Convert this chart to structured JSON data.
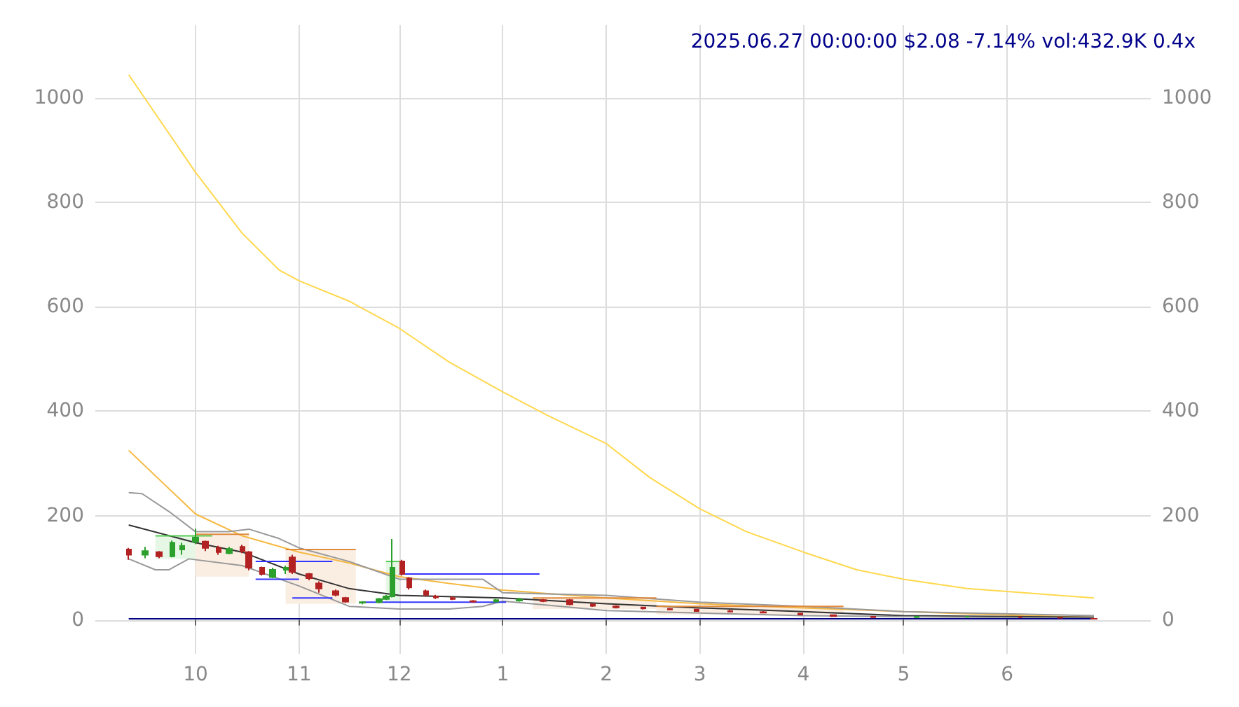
{
  "chart_data": {
    "type": "candlestick",
    "title": "2025.06.27 00:00:00 $2.08 -7.14% vol:432.9K 0.4x",
    "xlim": [
      "2024-09-01",
      "2025-07-14"
    ],
    "xticks": [
      {
        "value": "2024-10-01",
        "label": "10"
      },
      {
        "value": "2024-11-01",
        "label": "11"
      },
      {
        "value": "2024-12-01",
        "label": "12"
      },
      {
        "value": "2025-01-01",
        "label": "1"
      },
      {
        "value": "2025-02-01",
        "label": "2"
      },
      {
        "value": "2025-03-01",
        "label": "3"
      },
      {
        "value": "2025-04-01",
        "label": "4"
      },
      {
        "value": "2025-05-01",
        "label": "5"
      },
      {
        "value": "2025-06-01",
        "label": "6"
      }
    ],
    "ylim": [
      -65,
      1140
    ],
    "yticks": [
      0,
      200,
      400,
      600,
      800,
      1000
    ],
    "y2lim": [
      -65,
      1140
    ],
    "y2ticks": [
      0,
      200,
      400,
      600,
      800,
      1000
    ],
    "grid": true,
    "marker": "none",
    "line_style": "solid",
    "series": [
      {
        "type": "line",
        "color": "#ffd84d",
        "x": [
          "2024-09-11",
          "2024-10-01",
          "2024-10-15",
          "2024-10-26",
          "2024-11-01",
          "2024-11-16",
          "2024-12-01",
          "2024-12-16",
          "2025-01-01",
          "2025-01-15",
          "2025-02-01",
          "2025-02-14",
          "2025-03-01",
          "2025-03-15",
          "2025-04-01",
          "2025-04-17",
          "2025-05-01",
          "2025-05-20",
          "2025-06-06",
          "2025-06-27"
        ],
        "values": [
          1045,
          858,
          741,
          671,
          650,
          611,
          559,
          494,
          437,
          390,
          338,
          273,
          213,
          169,
          130,
          96,
          78,
          60,
          52,
          42
        ]
      },
      {
        "type": "line",
        "color": "#f5b942",
        "x": [
          "2024-09-11",
          "2024-10-01",
          "2024-10-15",
          "2024-11-01",
          "2024-11-16",
          "2024-12-01",
          "2024-12-16",
          "2025-01-01",
          "2025-02-01",
          "2025-03-01",
          "2025-04-01",
          "2025-05-01",
          "2025-06-06",
          "2025-06-27"
        ],
        "values": [
          325,
          203,
          161,
          130,
          109,
          83,
          70,
          57,
          42,
          31,
          23,
          16,
          8,
          5
        ]
      },
      {
        "type": "line",
        "color": "#333333",
        "x": [
          "2024-09-11",
          "2024-10-01",
          "2024-10-15",
          "2024-11-01",
          "2024-11-16",
          "2024-12-01",
          "2025-01-01",
          "2025-02-01",
          "2025-03-01",
          "2025-04-01",
          "2025-05-01",
          "2025-06-27"
        ],
        "values": [
          182,
          148,
          130,
          88,
          60,
          47,
          42,
          31,
          23,
          16,
          8,
          5
        ]
      },
      {
        "type": "line",
        "color": "#999999",
        "x": [
          "2024-09-11",
          "2024-09-15",
          "2024-09-23",
          "2024-10-01",
          "2024-10-11",
          "2024-10-17",
          "2024-10-26",
          "2024-11-01",
          "2024-11-16",
          "2024-12-01",
          "2024-12-16",
          "2024-12-26",
          "2025-01-01",
          "2025-02-01",
          "2025-03-01",
          "2025-04-01",
          "2025-05-01",
          "2025-06-27"
        ],
        "values": [
          244,
          242,
          208,
          169,
          169,
          174,
          156,
          138,
          112,
          78,
          78,
          78,
          52,
          47,
          34,
          26,
          16,
          8
        ]
      },
      {
        "type": "line",
        "color": "#999999",
        "x": [
          "2024-09-11",
          "2024-09-19",
          "2024-09-23",
          "2024-09-29",
          "2024-10-15",
          "2024-11-01",
          "2024-11-16",
          "2024-12-01",
          "2024-12-16",
          "2024-12-26",
          "2025-01-01",
          "2025-02-01",
          "2025-03-01",
          "2025-04-01",
          "2025-06-27"
        ],
        "values": [
          117,
          96,
          96,
          117,
          104,
          65,
          26,
          21,
          21,
          26,
          36,
          18,
          13,
          8,
          3
        ]
      },
      {
        "type": "line",
        "color": "#55cc55",
        "x": [
          "2024-09-19",
          "2024-10-06"
        ],
        "values": [
          161,
          161
        ],
        "lower": [
          117,
          117
        ],
        "upper": [
          161,
          161
        ]
      },
      {
        "type": "line",
        "color": "#e08a3c",
        "x": [
          "2024-10-01",
          "2024-10-17"
        ],
        "values": [
          164,
          164
        ],
        "lower": [
          83,
          83
        ],
        "upper": [
          164,
          164
        ]
      },
      {
        "type": "line",
        "color": "#e08a3c",
        "x": [
          "2024-10-28",
          "2024-11-18"
        ],
        "values": [
          135,
          135
        ],
        "lower": [
          31,
          31
        ],
        "upper": [
          135,
          135
        ]
      },
      {
        "type": "line",
        "color": "#55cc55",
        "x": [
          "2024-11-27",
          "2024-12-01"
        ],
        "values": [
          112,
          112
        ],
        "lower": [
          34,
          34
        ],
        "upper": [
          112,
          112
        ]
      },
      {
        "type": "line",
        "color": "#e08a3c",
        "x": [
          "2025-01-10",
          "2025-02-16"
        ],
        "values": [
          42,
          42
        ],
        "lower": [
          21,
          21
        ],
        "upper": [
          42,
          42
        ]
      },
      {
        "type": "line",
        "color": "#e08a3c",
        "x": [
          "2025-02-16",
          "2025-04-13"
        ],
        "values": [
          26,
          26
        ],
        "lower": [
          10,
          10
        ],
        "upper": [
          26,
          26
        ]
      },
      {
        "type": "line",
        "color": "#3333ff",
        "x": [
          "2024-10-19",
          "2024-11-11"
        ],
        "values": [
          112,
          112
        ]
      },
      {
        "type": "line",
        "color": "#3333ff",
        "x": [
          "2024-10-19",
          "2024-11-01"
        ],
        "values": [
          78,
          78
        ]
      },
      {
        "type": "line",
        "color": "#3333ff",
        "x": [
          "2024-12-01",
          "2025-01-12"
        ],
        "values": [
          88,
          88
        ]
      },
      {
        "type": "line",
        "color": "#3333ff",
        "x": [
          "2024-10-30",
          "2024-11-11"
        ],
        "values": [
          42,
          42
        ]
      },
      {
        "type": "line",
        "color": "#3333ff",
        "x": [
          "2024-11-20",
          "2025-01-02"
        ],
        "values": [
          34,
          34
        ]
      },
      {
        "type": "line",
        "color": "#000080",
        "x": [
          "2024-09-11",
          "2025-06-27"
        ],
        "values": [
          2,
          2
        ]
      },
      {
        "x": [
          "2024-09-11",
          "2024-09-16",
          "2024-09-20",
          "2024-09-24",
          "2024-09-27",
          "2024-10-01",
          "2024-10-04",
          "2024-10-08",
          "2024-10-11",
          "2024-10-15",
          "2024-10-17",
          "2024-10-21",
          "2024-10-24",
          "2024-10-28",
          "2024-10-30",
          "2024-11-04",
          "2024-11-07",
          "2024-11-12",
          "2024-11-15",
          "2024-11-20",
          "2024-11-25",
          "2024-11-27",
          "2024-11-29",
          "2024-12-02",
          "2024-12-04",
          "2024-12-09",
          "2024-12-12",
          "2024-12-17",
          "2024-12-23",
          "2024-12-30",
          "2025-01-06",
          "2025-01-13",
          "2025-01-21",
          "2025-01-28",
          "2025-02-04",
          "2025-02-12",
          "2025-02-20",
          "2025-02-28",
          "2025-03-10",
          "2025-03-20",
          "2025-03-31",
          "2025-04-10",
          "2025-04-22",
          "2025-05-05",
          "2025-05-20",
          "2025-06-05",
          "2025-06-17",
          "2025-06-27"
        ],
        "ohlc": [
          [
            135,
            138,
            115,
            125
          ],
          [
            125,
            140,
            118,
            132
          ],
          [
            130,
            132,
            118,
            122
          ],
          [
            122,
            152,
            120,
            148
          ],
          [
            135,
            148,
            125,
            142
          ],
          [
            150,
            175,
            145,
            158
          ],
          [
            150,
            152,
            132,
            138
          ],
          [
            138,
            142,
            125,
            130
          ],
          [
            128,
            140,
            126,
            136
          ],
          [
            140,
            144,
            128,
            132
          ],
          [
            130,
            132,
            95,
            100
          ],
          [
            100,
            102,
            85,
            88
          ],
          [
            82,
            100,
            80,
            96
          ],
          [
            96,
            104,
            88,
            100
          ],
          [
            120,
            125,
            88,
            92
          ],
          [
            88,
            90,
            76,
            80
          ],
          [
            70,
            74,
            52,
            60
          ],
          [
            55,
            58,
            45,
            48
          ],
          [
            42,
            44,
            33,
            35
          ],
          [
            33,
            36,
            30,
            34
          ],
          [
            34,
            42,
            32,
            40
          ],
          [
            40,
            48,
            38,
            45
          ],
          [
            45,
            155,
            43,
            100
          ],
          [
            112,
            115,
            85,
            88
          ],
          [
            80,
            82,
            58,
            62
          ],
          [
            55,
            58,
            46,
            48
          ],
          [
            45,
            48,
            40,
            43
          ],
          [
            42,
            45,
            38,
            40
          ],
          [
            36,
            38,
            33,
            35
          ],
          [
            35,
            40,
            34,
            38
          ],
          [
            37,
            42,
            35,
            39
          ],
          [
            38,
            40,
            34,
            36
          ],
          [
            38,
            40,
            28,
            30
          ],
          [
            30,
            31,
            25,
            27
          ],
          [
            26,
            28,
            22,
            24
          ],
          [
            24,
            25,
            20,
            22
          ],
          [
            21,
            23,
            19,
            20
          ],
          [
            20,
            21,
            16,
            17
          ],
          [
            17,
            19,
            15,
            16
          ],
          [
            15,
            17,
            13,
            14
          ],
          [
            12,
            13,
            9,
            10
          ],
          [
            9,
            10,
            6,
            7
          ],
          [
            6,
            7,
            4,
            5
          ],
          [
            5,
            7,
            4,
            6
          ],
          [
            6,
            7,
            5,
            6
          ],
          [
            5,
            6,
            4,
            5
          ],
          [
            4,
            5,
            3,
            4
          ],
          [
            2.24,
            2.5,
            2,
            2.08
          ]
        ]
      }
    ]
  }
}
